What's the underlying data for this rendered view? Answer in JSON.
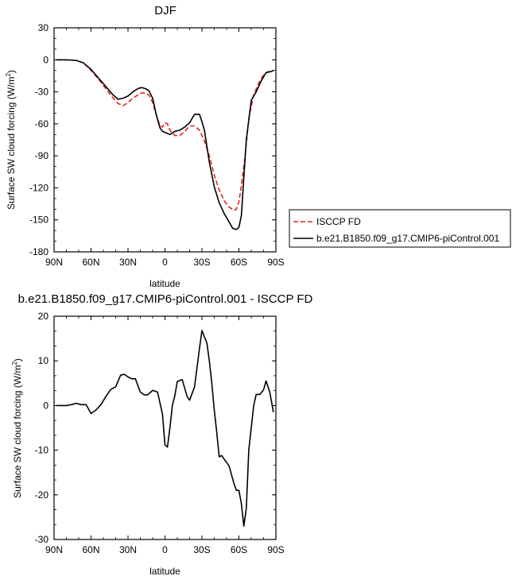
{
  "chart_data": [
    {
      "type": "line",
      "title": "DJF",
      "xlabel": "latitude",
      "ylabel": "Surface SW cloud forcing (W/m²)",
      "ylabel_main": "Surface SW cloud forcing (W/m",
      "ylabel_sup": "2",
      "ylabel_end": ")",
      "xlim": [
        90,
        -90
      ],
      "ylim": [
        -180,
        30
      ],
      "x_tick_values": [
        90,
        60,
        30,
        0,
        -30,
        -60,
        -90
      ],
      "x_tick_labels": [
        "90N",
        "60N",
        "30N",
        "0",
        "30S",
        "60S",
        "90S"
      ],
      "y_tick_values": [
        30,
        0,
        -30,
        -60,
        -90,
        -120,
        -150,
        -180
      ],
      "y_tick_labels": [
        "30",
        "0",
        "-30",
        "-60",
        "-90",
        "-120",
        "-150",
        "-180"
      ],
      "legend_position": "right",
      "series": [
        {
          "name": "ISCCP FD",
          "color": "#e8231d",
          "dash": "dashed",
          "x": [
            88,
            80,
            72,
            66,
            60,
            54,
            48,
            42,
            38,
            34,
            30,
            26,
            22,
            19,
            16,
            13,
            10,
            7,
            4,
            2,
            0,
            -2,
            -4,
            -8,
            -12,
            -16,
            -20,
            -24,
            -28,
            -32,
            -36,
            -40,
            -44,
            -48,
            -52,
            -56,
            -58,
            -60,
            -62,
            -65,
            -68,
            -72,
            -76,
            -80,
            -84,
            -88
          ],
          "y": [
            0,
            0,
            -0.5,
            -3,
            -10,
            -18,
            -27,
            -36,
            -41,
            -43,
            -40,
            -36,
            -33,
            -31,
            -31,
            -33,
            -40,
            -52,
            -62,
            -63,
            -59,
            -60,
            -66,
            -71,
            -71,
            -67,
            -62,
            -62,
            -66,
            -76,
            -90,
            -108,
            -122,
            -132,
            -138,
            -141,
            -140,
            -133,
            -118,
            -90,
            -55,
            -33,
            -22,
            -14,
            -11,
            -10
          ]
        },
        {
          "name": "b.e21.B1850.f09_g17.CMIP6-piControl.001",
          "color": "#000000",
          "dash": "solid",
          "x": [
            88,
            80,
            72,
            66,
            60,
            54,
            48,
            42,
            38,
            34,
            30,
            26,
            22,
            19,
            16,
            13,
            10,
            7,
            4,
            2,
            0,
            -4,
            -8,
            -12,
            -16,
            -20,
            -24,
            -28,
            -30,
            -32,
            -36,
            -40,
            -44,
            -48,
            -52,
            -55,
            -58,
            -60,
            -62,
            -64,
            -66,
            -70,
            -74,
            -78,
            -82,
            -86,
            -88
          ],
          "y": [
            0,
            0,
            -0.5,
            -3,
            -9,
            -17,
            -25,
            -33,
            -37,
            -36,
            -34,
            -30,
            -27,
            -26,
            -27,
            -29,
            -36,
            -52,
            -64,
            -67,
            -68,
            -70,
            -67,
            -66,
            -63,
            -59,
            -51,
            -51,
            -58,
            -66,
            -96,
            -119,
            -134,
            -144,
            -152,
            -158,
            -159,
            -157,
            -146,
            -110,
            -75,
            -38,
            -30,
            -20,
            -12,
            -11,
            -10
          ]
        }
      ]
    },
    {
      "type": "line",
      "title": "b.e21.B1850.f09_g17.CMIP6-piControl.001 - ISCCP FD",
      "xlabel": "latitude",
      "ylabel": "Surface SW cloud forcing (W/m²)",
      "ylabel_main": "Surface SW cloud forcing (W/m",
      "ylabel_sup": "2",
      "ylabel_end": ")",
      "xlim": [
        90,
        -90
      ],
      "ylim": [
        -30,
        20
      ],
      "x_tick_values": [
        90,
        60,
        30,
        0,
        -30,
        -60,
        -90
      ],
      "x_tick_labels": [
        "90N",
        "60N",
        "30N",
        "0",
        "30S",
        "60S",
        "90S"
      ],
      "y_tick_values": [
        20,
        10,
        0,
        -10,
        -20,
        -30
      ],
      "y_tick_labels": [
        "20",
        "10",
        "0",
        "-10",
        "-20",
        "-30"
      ],
      "series": [
        {
          "color": "#000000",
          "dash": "solid",
          "x": [
            88,
            80,
            76,
            72,
            68,
            64,
            60,
            56,
            52,
            48,
            44,
            40,
            36,
            33,
            30,
            27,
            24,
            20,
            17,
            14,
            10,
            6,
            2,
            0,
            -2,
            -4,
            -6,
            -8,
            -10,
            -14,
            -18,
            -20,
            -24,
            -28,
            -30,
            -34,
            -36,
            -38,
            -40,
            -42,
            -44,
            -46,
            -48,
            -52,
            -56,
            -58,
            -60,
            -62,
            -64,
            -66,
            -68,
            -72,
            -74,
            -77,
            -80,
            -82,
            -85,
            -88
          ],
          "y": [
            0,
            0,
            0.2,
            0.5,
            0.2,
            0.2,
            -1.8,
            -1.0,
            0.2,
            2.0,
            3.6,
            4.2,
            6.8,
            7.0,
            6.4,
            6.0,
            6.0,
            3.0,
            2.4,
            2.4,
            3.4,
            3.0,
            -2.0,
            -8.8,
            -9.3,
            -5.0,
            0.0,
            2.2,
            5.4,
            5.8,
            2.0,
            1.2,
            4.2,
            12.8,
            16.8,
            14.0,
            10.0,
            5.0,
            -1.0,
            -6.0,
            -11.5,
            -11.2,
            -12.0,
            -13.5,
            -17.5,
            -19.0,
            -19.0,
            -22.0,
            -27.0,
            -23.0,
            -10.0,
            0.0,
            2.5,
            2.5,
            3.5,
            5.5,
            3.0,
            -1.5
          ]
        }
      ]
    }
  ]
}
